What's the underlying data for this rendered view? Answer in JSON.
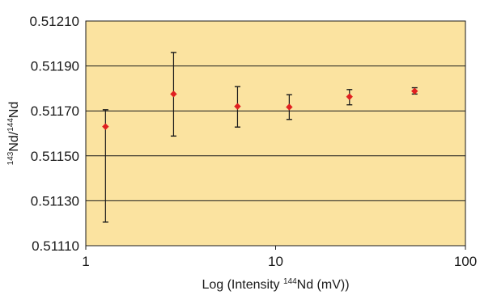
{
  "chart_data": {
    "type": "scatter",
    "title": "",
    "xlabel": {
      "prefix": "Log (Intensity ",
      "sup": "144",
      "suffix": "Nd (mV))"
    },
    "ylabel": {
      "sup1": "143",
      "mid": "Nd/",
      "sup2": "144",
      "suffix": "Nd"
    },
    "x_scale": "log",
    "xlim": [
      1,
      100
    ],
    "ylim": [
      0.5111,
      0.5121
    ],
    "x_ticks": [
      {
        "value": 1,
        "label": "1"
      },
      {
        "value": 10,
        "label": "10"
      },
      {
        "value": 100,
        "label": "100"
      }
    ],
    "y_ticks": [
      {
        "value": 0.5111,
        "label": "0.51110"
      },
      {
        "value": 0.5113,
        "label": "0.51130"
      },
      {
        "value": 0.5115,
        "label": "0.51150"
      },
      {
        "value": 0.5117,
        "label": "0.51170"
      },
      {
        "value": 0.5119,
        "label": "0.51190"
      },
      {
        "value": 0.5121,
        "label": "0.51210"
      }
    ],
    "grid": "horizontal",
    "series": [
      {
        "points": [
          {
            "x": 1.27,
            "y": 0.51163,
            "err_low": 0.511205,
            "err_high": 0.511705
          },
          {
            "x": 2.9,
            "y": 0.511775,
            "err_low": 0.511588,
            "err_high": 0.51196
          },
          {
            "x": 6.3,
            "y": 0.51172,
            "err_low": 0.511628,
            "err_high": 0.511808
          },
          {
            "x": 11.8,
            "y": 0.511717,
            "err_low": 0.511662,
            "err_high": 0.511772
          },
          {
            "x": 24.5,
            "y": 0.511763,
            "err_low": 0.511727,
            "err_high": 0.511795
          },
          {
            "x": 54.0,
            "y": 0.511788,
            "err_low": 0.511775,
            "err_high": 0.511803
          }
        ]
      }
    ],
    "colors": {
      "plot_background": "#fbe3a0",
      "marker": "#e02020",
      "errorbar": "#1a1a1a",
      "grid": "#1a1a1a"
    }
  }
}
